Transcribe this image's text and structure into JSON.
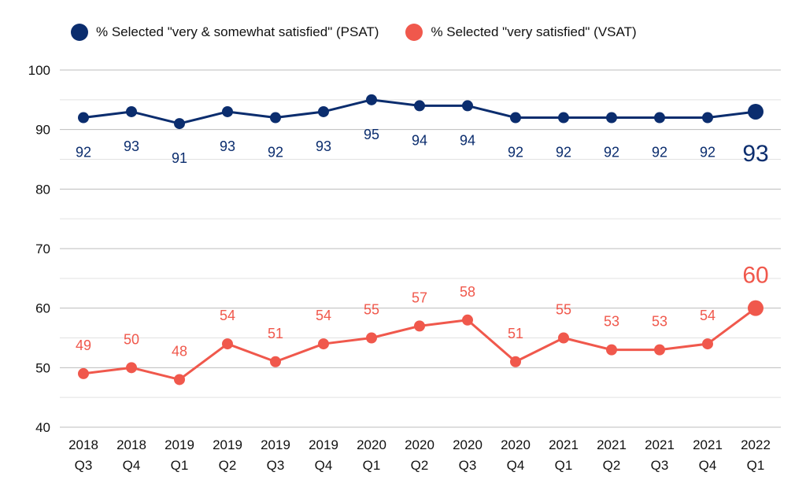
{
  "chart_data": {
    "type": "line",
    "title": "",
    "xlabel": "",
    "ylabel": "",
    "ylim": [
      40,
      100
    ],
    "yticks": [
      "40",
      "50",
      "60",
      "70",
      "80",
      "90",
      "100"
    ],
    "grid": true,
    "legend_position": "top",
    "categories": [
      [
        "2018",
        "Q3"
      ],
      [
        "2018",
        "Q4"
      ],
      [
        "2019",
        "Q1"
      ],
      [
        "2019",
        "Q2"
      ],
      [
        "2019",
        "Q3"
      ],
      [
        "2019",
        "Q4"
      ],
      [
        "2020",
        "Q1"
      ],
      [
        "2020",
        "Q2"
      ],
      [
        "2020",
        "Q3"
      ],
      [
        "2020",
        "Q4"
      ],
      [
        "2021",
        "Q1"
      ],
      [
        "2021",
        "Q2"
      ],
      [
        "2021",
        "Q3"
      ],
      [
        "2021",
        "Q4"
      ],
      [
        "2022",
        "Q1"
      ]
    ],
    "series": [
      {
        "name": "% Selected \"very & somewhat satisfied\" (PSAT)",
        "color": "#0b2d6e",
        "label_position": "below",
        "values": [
          92,
          93,
          91,
          93,
          92,
          93,
          95,
          94,
          94,
          92,
          92,
          92,
          92,
          92,
          93
        ]
      },
      {
        "name": "% Selected \"very satisfied\" (VSAT)",
        "color": "#f0584c",
        "label_position": "above",
        "values": [
          49,
          50,
          48,
          54,
          51,
          54,
          55,
          57,
          58,
          51,
          55,
          53,
          53,
          54,
          60
        ]
      }
    ]
  }
}
